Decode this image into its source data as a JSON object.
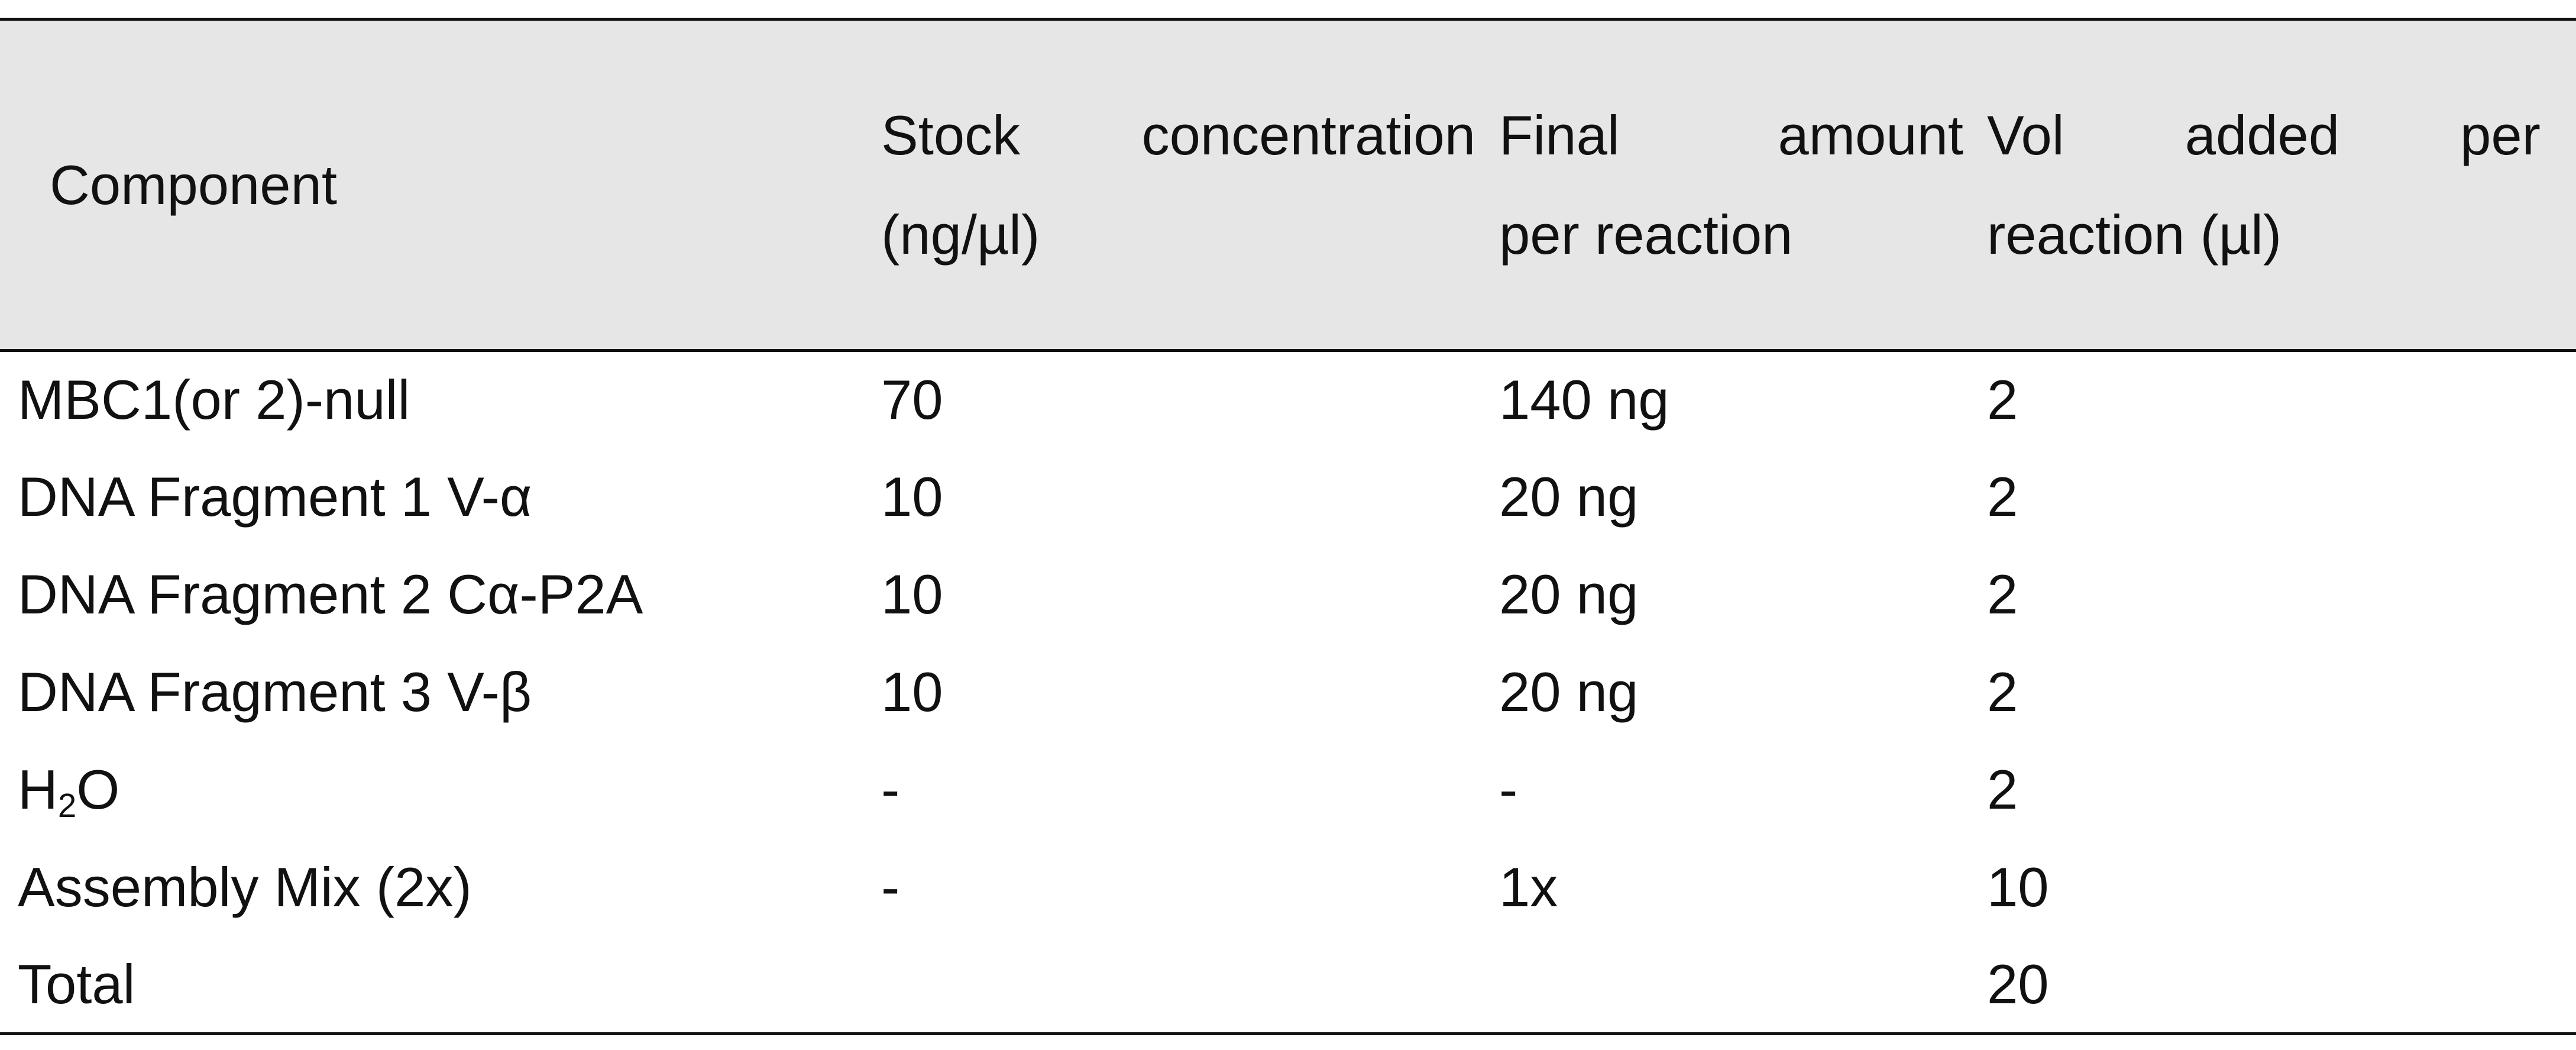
{
  "table": {
    "headers": {
      "component": "Component",
      "stock": {
        "line1_words": [
          "Stock",
          "concentration"
        ],
        "line2": "(ng/µl)"
      },
      "final": {
        "line1_words": [
          "Final",
          "amount"
        ],
        "line2": "per reaction"
      },
      "vol": {
        "line1_words": [
          "Vol",
          "added",
          "per"
        ],
        "line2": "reaction (µl)"
      }
    },
    "rows": [
      {
        "component": "MBC1(or 2)-null",
        "stock": "70",
        "final": "140 ng",
        "vol": "2"
      },
      {
        "component": "DNA Fragment 1 V-α",
        "stock": "10",
        "final": "20 ng",
        "vol": "2"
      },
      {
        "component": "DNA Fragment 2 Cα-P2A",
        "stock": "10",
        "final": "20 ng",
        "vol": "2"
      },
      {
        "component": "DNA Fragment 3 V-β",
        "stock": "10",
        "final": "20 ng",
        "vol": "2"
      },
      {
        "component_base": "H",
        "component_sub": "2",
        "component_tail": "O",
        "stock": "-",
        "final": "-",
        "vol": "2"
      },
      {
        "component": "Assembly Mix (2x)",
        "stock": "-",
        "final": "1x",
        "vol": "10"
      },
      {
        "component": "Total",
        "stock": "",
        "final": "",
        "vol": "20"
      }
    ]
  }
}
